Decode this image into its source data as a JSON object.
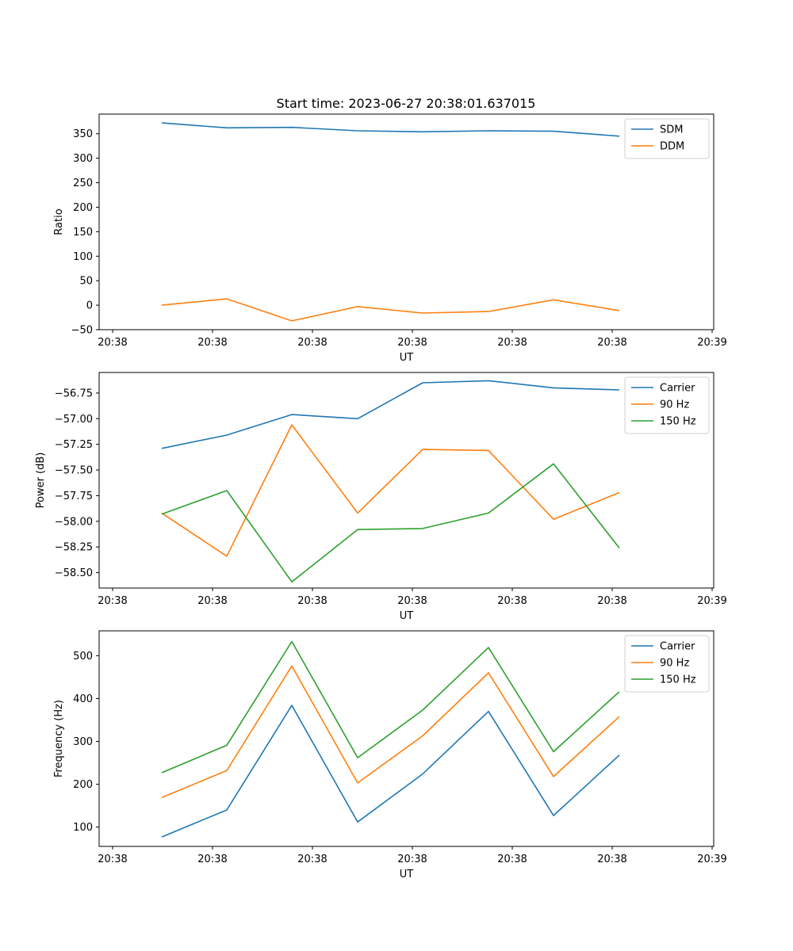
{
  "title": "Start time: 2023-06-27 20:38:01.637015",
  "chart_data": [
    {
      "type": "line",
      "xlabel": "UT",
      "ylabel": "Ratio",
      "x_tick_labels": [
        "20:38",
        "20:38",
        "20:38",
        "20:38",
        "20:38",
        "20:38",
        "20:39"
      ],
      "y_ticks": [
        -50,
        0,
        50,
        100,
        150,
        200,
        250,
        300,
        350
      ],
      "ylim": [
        -50,
        390
      ],
      "legend": "top-right",
      "grid": false,
      "series": [
        {
          "name": "SDM",
          "color": "#1f77b4",
          "values": [
            372,
            362,
            363,
            356,
            354,
            356,
            355,
            345
          ]
        },
        {
          "name": "DDM",
          "color": "#ff7f0e",
          "values": [
            0,
            13,
            -32,
            -3,
            -16,
            -13,
            11,
            -11
          ]
        }
      ]
    },
    {
      "type": "line",
      "xlabel": "UT",
      "ylabel": "Power (dB)",
      "x_tick_labels": [
        "20:38",
        "20:38",
        "20:38",
        "20:38",
        "20:38",
        "20:38",
        "20:39"
      ],
      "y_ticks": [
        -58.5,
        -58.25,
        -58.0,
        -57.75,
        -57.5,
        -57.25,
        -57.0,
        -56.75
      ],
      "y_tick_labels": [
        "−58.50",
        "−58.25",
        "−58.00",
        "−57.75",
        "−57.50",
        "−57.25",
        "−57.00",
        "−56.75"
      ],
      "ylim": [
        -58.65,
        -56.55
      ],
      "legend": "top-right",
      "grid": false,
      "series": [
        {
          "name": "Carrier",
          "color": "#1f77b4",
          "values": [
            -57.29,
            -57.16,
            -56.96,
            -57.0,
            -56.65,
            -56.63,
            -56.7,
            -56.72
          ]
        },
        {
          "name": "90 Hz",
          "color": "#ff7f0e",
          "values": [
            -57.92,
            -58.34,
            -57.06,
            -57.92,
            -57.3,
            -57.31,
            -57.98,
            -57.72
          ]
        },
        {
          "name": "150 Hz",
          "color": "#2ca02c",
          "values": [
            -57.93,
            -57.7,
            -58.59,
            -58.08,
            -58.07,
            -57.92,
            -57.44,
            -58.26
          ]
        }
      ]
    },
    {
      "type": "line",
      "xlabel": "UT",
      "ylabel": "Frequency (Hz)",
      "x_tick_labels": [
        "20:38",
        "20:38",
        "20:38",
        "20:38",
        "20:38",
        "20:38",
        "20:39"
      ],
      "y_ticks": [
        100,
        200,
        300,
        400,
        500
      ],
      "ylim": [
        55,
        558
      ],
      "legend": "top-right",
      "grid": false,
      "series": [
        {
          "name": "Carrier",
          "color": "#1f77b4",
          "values": [
            77,
            140,
            384,
            112,
            224,
            370,
            127,
            268
          ]
        },
        {
          "name": "90 Hz",
          "color": "#ff7f0e",
          "values": [
            169,
            232,
            476,
            203,
            313,
            460,
            218,
            358
          ]
        },
        {
          "name": "150 Hz",
          "color": "#2ca02c",
          "values": [
            227,
            291,
            533,
            262,
            373,
            519,
            276,
            416
          ]
        }
      ]
    }
  ]
}
